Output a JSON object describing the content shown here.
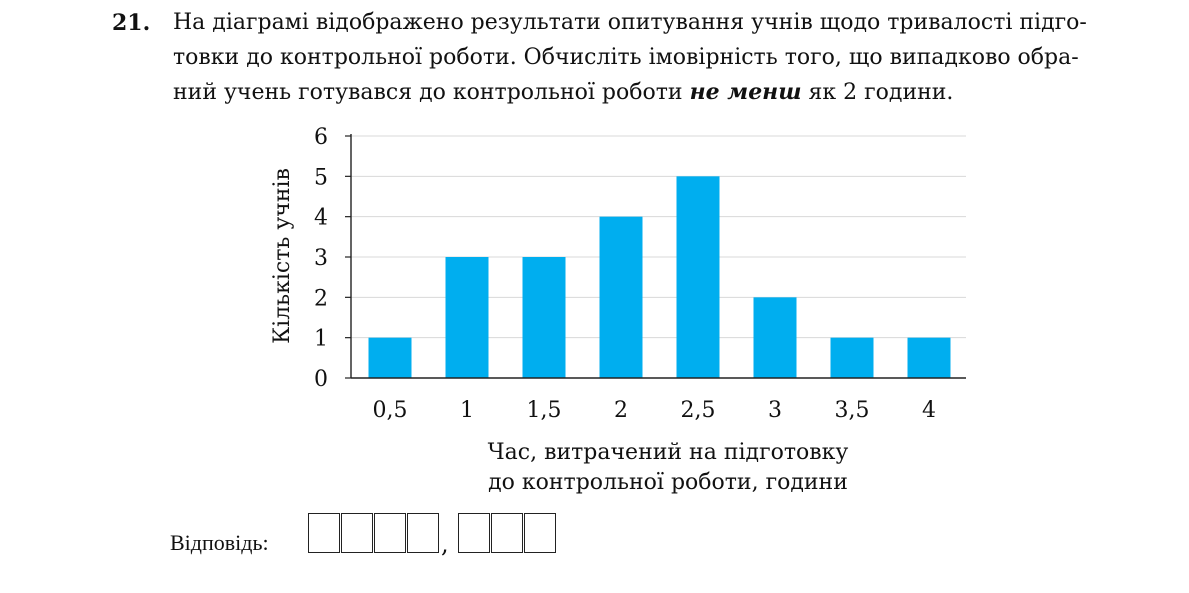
{
  "problem": {
    "number": "21.",
    "line1": "На діаграмі відображено результати опитування учнів щодо тривалості підго-",
    "line2": "товки до контрольної роботи. Обчисліть імовірність того, що випадково обра-",
    "line3_before": "ний учень готувався до контрольної роботи ",
    "line3_emph": "не менш",
    "line3_after": " як 2 години."
  },
  "chart_data": {
    "type": "bar",
    "categories": [
      "0,5",
      "1",
      "1,5",
      "2",
      "2,5",
      "3",
      "3,5",
      "4"
    ],
    "values": [
      1,
      3,
      3,
      4,
      5,
      2,
      1,
      1
    ],
    "ylabel": "Кількість учнів",
    "xlabel_lines": [
      "Час, витрачений на підготовку",
      "до контрольної роботи, години"
    ],
    "yticks": [
      "0",
      "1",
      "2",
      "3",
      "4",
      "5",
      "6"
    ],
    "ylim": [
      0,
      6
    ],
    "grid": true,
    "bar_color": "#00aeef"
  },
  "answer": {
    "label": "Відповідь:",
    "separator": ","
  }
}
